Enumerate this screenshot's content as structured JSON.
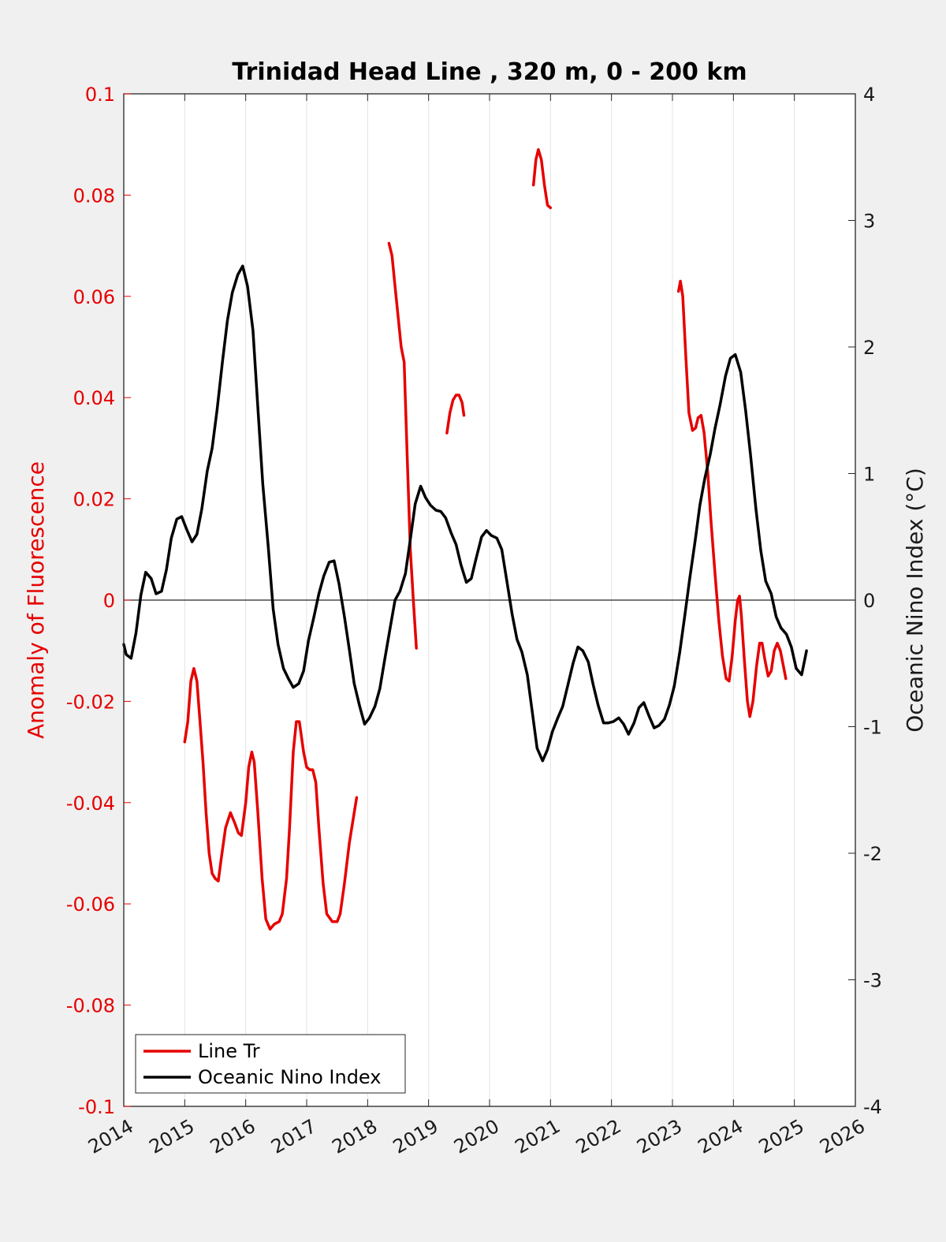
{
  "chart_data": {
    "type": "line",
    "title": "Trinidad Head Line , 320 m, 0 - 200 km",
    "xlabel": "",
    "ylabel_left": "Anomaly of Fluorescence",
    "ylabel_right": "Oceanic Nino Index (°C)",
    "xlim": [
      2014,
      2026
    ],
    "ylim_left": [
      -0.1,
      0.1
    ],
    "ylim_right": [
      -4,
      4
    ],
    "x_ticks": [
      "2014",
      "2015",
      "2016",
      "2017",
      "2018",
      "2019",
      "2020",
      "2021",
      "2022",
      "2023",
      "2024",
      "2025",
      "2026"
    ],
    "y_ticks_left": [
      "0.1",
      "0.08",
      "0.06",
      "0.04",
      "0.02",
      "0",
      "-0.02",
      "-0.04",
      "-0.06",
      "-0.08",
      "-0.1"
    ],
    "y_ticks_right": [
      "4",
      "3",
      "2",
      "1",
      "0",
      "-1",
      "-2",
      "-3",
      "-4"
    ],
    "grid": "vertical",
    "zero_line": true,
    "legend_position": "bottom-left",
    "colors": {
      "line_tr": "#e60000",
      "oni": "#000000",
      "left_axis": "#e60000",
      "right_axis": "#1a1a1a"
    },
    "series": [
      {
        "name": "Line Tr",
        "axis": "left",
        "segments": [
          [
            [
              2015.0,
              -0.028
            ],
            [
              2015.05,
              -0.024
            ],
            [
              2015.1,
              -0.016
            ],
            [
              2015.15,
              -0.0135
            ],
            [
              2015.2,
              -0.016
            ],
            [
              2015.25,
              -0.024
            ],
            [
              2015.3,
              -0.032
            ],
            [
              2015.35,
              -0.042
            ],
            [
              2015.4,
              -0.05
            ],
            [
              2015.45,
              -0.054
            ],
            [
              2015.5,
              -0.055
            ],
            [
              2015.55,
              -0.0555
            ],
            [
              2015.6,
              -0.051
            ],
            [
              2015.67,
              -0.045
            ],
            [
              2015.75,
              -0.042
            ],
            [
              2015.82,
              -0.044
            ],
            [
              2015.88,
              -0.046
            ],
            [
              2015.93,
              -0.0465
            ],
            [
              2016.0,
              -0.04
            ],
            [
              2016.05,
              -0.033
            ],
            [
              2016.1,
              -0.03
            ],
            [
              2016.14,
              -0.032
            ],
            [
              2016.2,
              -0.042
            ],
            [
              2016.27,
              -0.055
            ],
            [
              2016.33,
              -0.063
            ],
            [
              2016.4,
              -0.065
            ],
            [
              2016.47,
              -0.064
            ],
            [
              2016.55,
              -0.0635
            ],
            [
              2016.6,
              -0.062
            ],
            [
              2016.67,
              -0.055
            ],
            [
              2016.72,
              -0.045
            ],
            [
              2016.78,
              -0.03
            ],
            [
              2016.83,
              -0.024
            ],
            [
              2016.88,
              -0.024
            ],
            [
              2016.95,
              -0.03
            ],
            [
              2017.0,
              -0.033
            ],
            [
              2017.05,
              -0.0335
            ],
            [
              2017.1,
              -0.0335
            ],
            [
              2017.15,
              -0.036
            ],
            [
              2017.2,
              -0.045
            ],
            [
              2017.27,
              -0.056
            ],
            [
              2017.33,
              -0.062
            ],
            [
              2017.42,
              -0.0635
            ],
            [
              2017.5,
              -0.0635
            ],
            [
              2017.55,
              -0.062
            ],
            [
              2017.62,
              -0.056
            ],
            [
              2017.7,
              -0.048
            ],
            [
              2017.78,
              -0.042
            ],
            [
              2017.82,
              -0.039
            ]
          ],
          [
            [
              2018.35,
              0.0705
            ],
            [
              2018.4,
              0.068
            ],
            [
              2018.45,
              0.062
            ],
            [
              2018.5,
              0.056
            ],
            [
              2018.55,
              0.05
            ],
            [
              2018.6,
              0.047
            ],
            [
              2018.65,
              0.028
            ],
            [
              2018.7,
              0.01
            ],
            [
              2018.75,
              0.0
            ],
            [
              2018.8,
              -0.0095
            ]
          ],
          [
            [
              2019.3,
              0.033
            ],
            [
              2019.35,
              0.037
            ],
            [
              2019.4,
              0.0395
            ],
            [
              2019.45,
              0.0405
            ],
            [
              2019.5,
              0.0405
            ],
            [
              2019.55,
              0.039
            ],
            [
              2019.58,
              0.0365
            ]
          ],
          [
            [
              2020.72,
              0.082
            ],
            [
              2020.76,
              0.087
            ],
            [
              2020.8,
              0.089
            ],
            [
              2020.85,
              0.087
            ],
            [
              2020.9,
              0.082
            ],
            [
              2020.95,
              0.078
            ],
            [
              2021.0,
              0.0775
            ]
          ],
          [
            [
              2023.1,
              0.061
            ],
            [
              2023.13,
              0.063
            ],
            [
              2023.17,
              0.06
            ],
            [
              2023.22,
              0.048
            ],
            [
              2023.27,
              0.037
            ],
            [
              2023.33,
              0.0335
            ],
            [
              2023.38,
              0.034
            ],
            [
              2023.42,
              0.036
            ],
            [
              2023.47,
              0.0365
            ],
            [
              2023.52,
              0.033
            ],
            [
              2023.58,
              0.025
            ],
            [
              2023.63,
              0.016
            ],
            [
              2023.7,
              0.005
            ],
            [
              2023.76,
              -0.004
            ],
            [
              2023.82,
              -0.011
            ],
            [
              2023.88,
              -0.0155
            ],
            [
              2023.93,
              -0.016
            ],
            [
              2023.98,
              -0.011
            ],
            [
              2024.03,
              -0.004
            ],
            [
              2024.07,
              0.0
            ],
            [
              2024.1,
              0.0008
            ],
            [
              2024.13,
              -0.003
            ],
            [
              2024.18,
              -0.012
            ],
            [
              2024.23,
              -0.02
            ],
            [
              2024.27,
              -0.023
            ],
            [
              2024.32,
              -0.02
            ],
            [
              2024.38,
              -0.013
            ],
            [
              2024.43,
              -0.0085
            ],
            [
              2024.47,
              -0.0085
            ],
            [
              2024.52,
              -0.012
            ],
            [
              2024.57,
              -0.015
            ],
            [
              2024.62,
              -0.014
            ],
            [
              2024.67,
              -0.01
            ],
            [
              2024.72,
              -0.0085
            ],
            [
              2024.77,
              -0.01
            ],
            [
              2024.82,
              -0.013
            ],
            [
              2024.86,
              -0.0155
            ]
          ]
        ]
      },
      {
        "name": "Oceanic Nino Index",
        "axis": "right",
        "segments": [
          [
            [
              2014.0,
              -0.35
            ],
            [
              2014.04,
              -0.43
            ],
            [
              2014.12,
              -0.46
            ],
            [
              2014.2,
              -0.26
            ],
            [
              2014.28,
              0.04
            ],
            [
              2014.36,
              0.22
            ],
            [
              2014.45,
              0.17
            ],
            [
              2014.53,
              0.05
            ],
            [
              2014.62,
              0.07
            ],
            [
              2014.7,
              0.24
            ],
            [
              2014.78,
              0.49
            ],
            [
              2014.87,
              0.64
            ],
            [
              2014.95,
              0.66
            ],
            [
              2015.03,
              0.56
            ],
            [
              2015.12,
              0.46
            ],
            [
              2015.2,
              0.52
            ],
            [
              2015.28,
              0.72
            ],
            [
              2015.37,
              1.02
            ],
            [
              2015.45,
              1.2
            ],
            [
              2015.53,
              1.5
            ],
            [
              2015.62,
              1.89
            ],
            [
              2015.7,
              2.21
            ],
            [
              2015.78,
              2.43
            ],
            [
              2015.87,
              2.57
            ],
            [
              2015.95,
              2.64
            ],
            [
              2016.03,
              2.48
            ],
            [
              2016.12,
              2.13
            ],
            [
              2016.2,
              1.52
            ],
            [
              2016.28,
              0.92
            ],
            [
              2016.37,
              0.42
            ],
            [
              2016.45,
              -0.07
            ],
            [
              2016.53,
              -0.35
            ],
            [
              2016.62,
              -0.54
            ],
            [
              2016.7,
              -0.62
            ],
            [
              2016.78,
              -0.69
            ],
            [
              2016.87,
              -0.66
            ],
            [
              2016.95,
              -0.56
            ],
            [
              2017.03,
              -0.32
            ],
            [
              2017.12,
              -0.13
            ],
            [
              2017.2,
              0.05
            ],
            [
              2017.28,
              0.19
            ],
            [
              2017.37,
              0.3
            ],
            [
              2017.45,
              0.31
            ],
            [
              2017.53,
              0.13
            ],
            [
              2017.62,
              -0.13
            ],
            [
              2017.7,
              -0.39
            ],
            [
              2017.78,
              -0.66
            ],
            [
              2017.87,
              -0.84
            ],
            [
              2017.95,
              -0.98
            ],
            [
              2018.03,
              -0.93
            ],
            [
              2018.12,
              -0.84
            ],
            [
              2018.2,
              -0.7
            ],
            [
              2018.28,
              -0.47
            ],
            [
              2018.37,
              -0.22
            ],
            [
              2018.45,
              0.0
            ],
            [
              2018.53,
              0.07
            ],
            [
              2018.62,
              0.21
            ],
            [
              2018.7,
              0.48
            ],
            [
              2018.78,
              0.76
            ],
            [
              2018.87,
              0.9
            ],
            [
              2018.95,
              0.81
            ],
            [
              2019.03,
              0.75
            ],
            [
              2019.12,
              0.71
            ],
            [
              2019.2,
              0.7
            ],
            [
              2019.28,
              0.65
            ],
            [
              2019.37,
              0.53
            ],
            [
              2019.45,
              0.44
            ],
            [
              2019.53,
              0.28
            ],
            [
              2019.62,
              0.14
            ],
            [
              2019.7,
              0.17
            ],
            [
              2019.78,
              0.33
            ],
            [
              2019.87,
              0.5
            ],
            [
              2019.95,
              0.55
            ],
            [
              2020.03,
              0.51
            ],
            [
              2020.12,
              0.49
            ],
            [
              2020.2,
              0.4
            ],
            [
              2020.28,
              0.16
            ],
            [
              2020.37,
              -0.11
            ],
            [
              2020.45,
              -0.31
            ],
            [
              2020.53,
              -0.41
            ],
            [
              2020.62,
              -0.59
            ],
            [
              2020.7,
              -0.88
            ],
            [
              2020.78,
              -1.17
            ],
            [
              2020.87,
              -1.27
            ],
            [
              2020.95,
              -1.18
            ],
            [
              2021.03,
              -1.04
            ],
            [
              2021.12,
              -0.93
            ],
            [
              2021.2,
              -0.84
            ],
            [
              2021.28,
              -0.68
            ],
            [
              2021.37,
              -0.5
            ],
            [
              2021.45,
              -0.37
            ],
            [
              2021.53,
              -0.4
            ],
            [
              2021.62,
              -0.49
            ],
            [
              2021.7,
              -0.67
            ],
            [
              2021.78,
              -0.83
            ],
            [
              2021.87,
              -0.97
            ],
            [
              2021.95,
              -0.97
            ],
            [
              2022.03,
              -0.96
            ],
            [
              2022.12,
              -0.93
            ],
            [
              2022.2,
              -0.98
            ],
            [
              2022.28,
              -1.06
            ],
            [
              2022.37,
              -0.97
            ],
            [
              2022.45,
              -0.85
            ],
            [
              2022.53,
              -0.81
            ],
            [
              2022.62,
              -0.92
            ],
            [
              2022.7,
              -1.01
            ],
            [
              2022.78,
              -0.99
            ],
            [
              2022.87,
              -0.94
            ],
            [
              2022.95,
              -0.83
            ],
            [
              2023.03,
              -0.68
            ],
            [
              2023.12,
              -0.41
            ],
            [
              2023.2,
              -0.13
            ],
            [
              2023.28,
              0.16
            ],
            [
              2023.37,
              0.46
            ],
            [
              2023.45,
              0.75
            ],
            [
              2023.53,
              0.96
            ],
            [
              2023.62,
              1.15
            ],
            [
              2023.7,
              1.36
            ],
            [
              2023.78,
              1.54
            ],
            [
              2023.87,
              1.77
            ],
            [
              2023.95,
              1.91
            ],
            [
              2024.03,
              1.94
            ],
            [
              2024.12,
              1.8
            ],
            [
              2024.2,
              1.5
            ],
            [
              2024.28,
              1.15
            ],
            [
              2024.37,
              0.72
            ],
            [
              2024.45,
              0.39
            ],
            [
              2024.53,
              0.15
            ],
            [
              2024.62,
              0.05
            ],
            [
              2024.7,
              -0.13
            ],
            [
              2024.78,
              -0.22
            ],
            [
              2024.87,
              -0.27
            ],
            [
              2024.95,
              -0.37
            ],
            [
              2025.03,
              -0.54
            ],
            [
              2025.12,
              -0.59
            ],
            [
              2025.2,
              -0.4
            ]
          ]
        ]
      }
    ]
  }
}
